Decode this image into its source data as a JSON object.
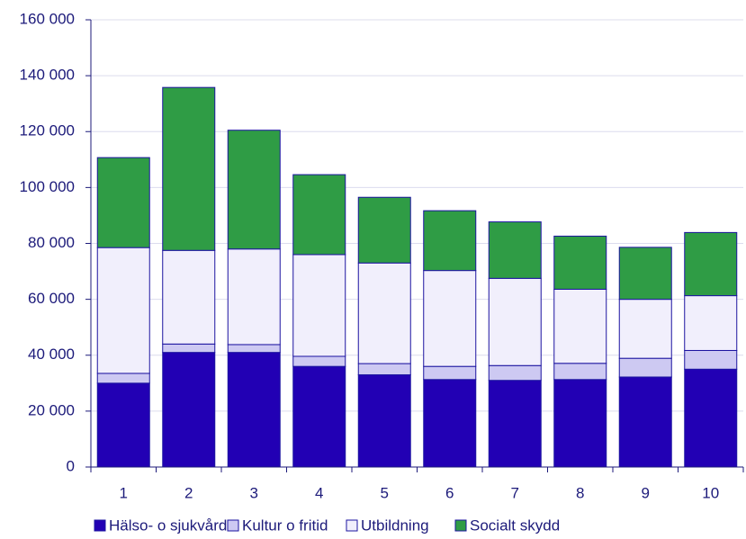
{
  "chart_data": {
    "type": "stacked_bar",
    "categories": [
      "1",
      "2",
      "3",
      "4",
      "5",
      "6",
      "7",
      "8",
      "9",
      "10"
    ],
    "series": [
      {
        "name": "Hälso- o sjukvård",
        "color": "#2200b4",
        "values": [
          30000,
          41000,
          41000,
          36000,
          33000,
          31300,
          31000,
          31300,
          32200,
          35000
        ]
      },
      {
        "name": "Kultur o fritid",
        "color": "#cdc9f2",
        "values": [
          3500,
          3000,
          2800,
          3600,
          4000,
          4700,
          5300,
          5800,
          6700,
          6700
        ]
      },
      {
        "name": "Utbildning",
        "color": "#f1effc",
        "values": [
          45000,
          33500,
          34200,
          36400,
          36000,
          34300,
          31200,
          26500,
          21100,
          19600
        ]
      },
      {
        "name": "Socialt skydd",
        "color": "#2f9c45",
        "values": [
          32200,
          58300,
          42500,
          28600,
          23500,
          21400,
          20200,
          19000,
          18600,
          22600
        ]
      }
    ],
    "ylim": [
      0,
      160000
    ],
    "yticks": [
      0,
      {
        "value": 20000,
        "label": "20 000"
      },
      {
        "value": 40000,
        "label": "40 000"
      },
      {
        "value": 60000,
        "label": "60 000"
      },
      {
        "value": 80000,
        "label": "80 000"
      },
      {
        "value": 100000,
        "label": "100 000"
      },
      {
        "value": 120000,
        "label": "120 000"
      },
      {
        "value": 140000,
        "label": "140 000"
      },
      {
        "value": 160000,
        "label": "160 000"
      }
    ],
    "grid": true,
    "legend": "bottom"
  }
}
